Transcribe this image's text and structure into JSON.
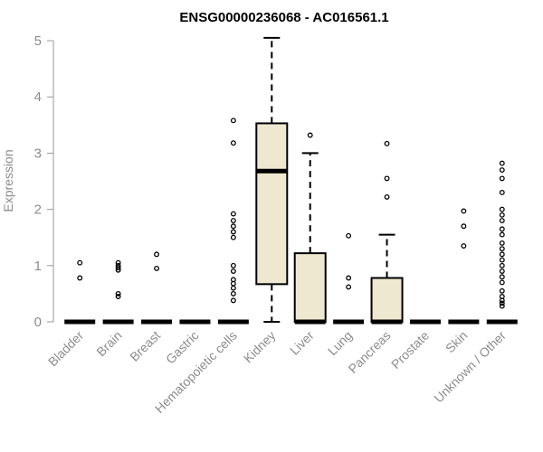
{
  "chart_data": {
    "type": "box",
    "title": "ENSG00000236068 - AC016561.1",
    "ylabel": "Expression",
    "xlabel": "",
    "ylim": [
      0,
      5.2
    ],
    "yticks": [
      "0",
      "1",
      "2",
      "3",
      "4",
      "5"
    ],
    "box_fill": "#efe8d0",
    "categories": [
      "Bladder",
      "Brain",
      "Breast",
      "Gastric",
      "Hematopoietic cells",
      "Kidney",
      "Liver",
      "Lung",
      "Pancreas",
      "Prostate",
      "Skin",
      "Unknown / Other"
    ],
    "boxes": [
      {
        "category": "Bladder",
        "q1": 0,
        "median": 0,
        "q3": 0,
        "whisker_low": 0,
        "whisker_high": 0,
        "outliers": [
          0.78,
          1.05
        ]
      },
      {
        "category": "Brain",
        "q1": 0,
        "median": 0,
        "q3": 0,
        "whisker_low": 0,
        "whisker_high": 0,
        "outliers": [
          0.45,
          0.5,
          0.92,
          0.96,
          1.0,
          1.05
        ]
      },
      {
        "category": "Breast",
        "q1": 0,
        "median": 0,
        "q3": 0,
        "whisker_low": 0,
        "whisker_high": 0,
        "outliers": [
          0.95,
          1.2
        ]
      },
      {
        "category": "Gastric",
        "q1": 0,
        "median": 0,
        "q3": 0,
        "whisker_low": 0,
        "whisker_high": 0,
        "outliers": []
      },
      {
        "category": "Hematopoietic cells",
        "q1": 0,
        "median": 0,
        "q3": 0,
        "whisker_low": 0,
        "whisker_high": 0,
        "outliers": [
          0.38,
          0.5,
          0.6,
          0.68,
          0.75,
          0.9,
          1.0,
          1.5,
          1.6,
          1.7,
          1.8,
          1.92,
          3.18,
          3.58
        ]
      },
      {
        "category": "Kidney",
        "q1": 0.67,
        "median": 2.68,
        "q3": 3.53,
        "whisker_low": 0,
        "whisker_high": 5.05,
        "outliers": []
      },
      {
        "category": "Liver",
        "q1": 0,
        "median": 0,
        "q3": 1.22,
        "whisker_low": 0,
        "whisker_high": 3.0,
        "outliers": [
          3.32
        ]
      },
      {
        "category": "Lung",
        "q1": 0,
        "median": 0,
        "q3": 0,
        "whisker_low": 0,
        "whisker_high": 0,
        "outliers": [
          0.62,
          0.78,
          1.53
        ]
      },
      {
        "category": "Pancreas",
        "q1": 0,
        "median": 0,
        "q3": 0.78,
        "whisker_low": 0,
        "whisker_high": 1.55,
        "outliers": [
          2.22,
          2.55,
          3.17
        ]
      },
      {
        "category": "Prostate",
        "q1": 0,
        "median": 0,
        "q3": 0,
        "whisker_low": 0,
        "whisker_high": 0,
        "outliers": []
      },
      {
        "category": "Skin",
        "q1": 0,
        "median": 0,
        "q3": 0,
        "whisker_low": 0,
        "whisker_high": 0,
        "outliers": [
          1.35,
          1.7,
          1.97
        ]
      },
      {
        "category": "Unknown / Other",
        "q1": 0,
        "median": 0,
        "q3": 0,
        "whisker_low": 0,
        "whisker_high": 0,
        "outliers": [
          0.28,
          0.33,
          0.38,
          0.45,
          0.55,
          0.7,
          0.8,
          0.9,
          1.0,
          1.1,
          1.2,
          1.3,
          1.4,
          1.55,
          1.65,
          1.8,
          1.9,
          2.0,
          2.3,
          2.55,
          2.7,
          2.82
        ]
      }
    ]
  }
}
